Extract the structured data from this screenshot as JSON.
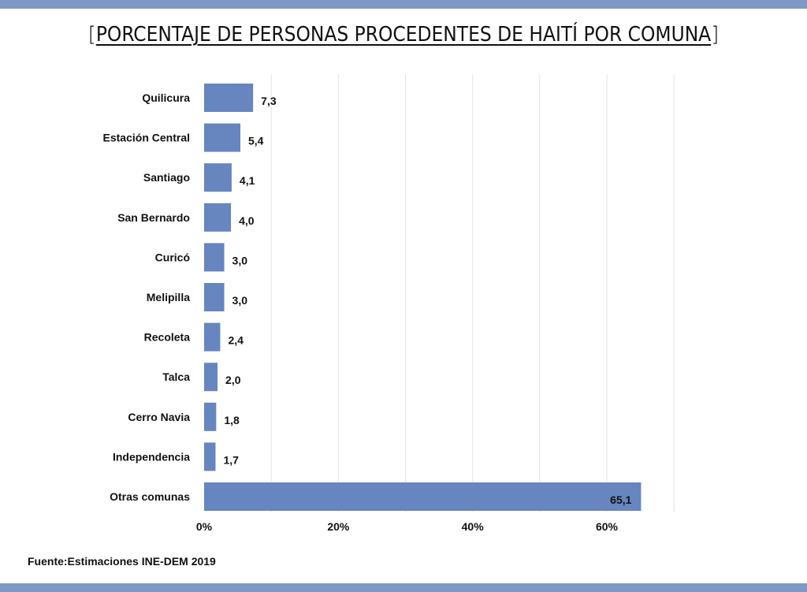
{
  "title": "PORCENTAJE DE PERSONAS PROCEDENTES DE HAITÍ POR COMUNA",
  "source": "Fuente:Estimaciones INE-DEM 2019",
  "colors": {
    "band": "#7f97c4",
    "bar": "#6785be",
    "grid": "#e3e3e3",
    "text": "#111111"
  },
  "chart_data": {
    "type": "bar",
    "orientation": "horizontal",
    "title": "PORCENTAJE DE PERSONAS PROCEDENTES DE HAITÍ POR COMUNA",
    "categories": [
      "Quilicura",
      "Estación Central",
      "Santiago",
      "San Bernardo",
      "Curicó",
      "Melipilla",
      "Recoleta",
      "Talca",
      "Cerro Navia",
      "Independencia",
      "Otras comunas"
    ],
    "values": [
      7.3,
      5.4,
      4.1,
      4.0,
      3.0,
      3.0,
      2.4,
      2.0,
      1.8,
      1.7,
      65.1
    ],
    "value_labels": [
      "7,3",
      "5,4",
      "4,1",
      "4,0",
      "3,0",
      "3,0",
      "2,4",
      "2,0",
      "1,8",
      "1,7",
      "65,1"
    ],
    "x_ticks": [
      0,
      20,
      40,
      60
    ],
    "x_tick_labels": [
      "0%",
      "20%",
      "40%",
      "60%"
    ],
    "xlim": [
      0,
      70
    ],
    "grid": true
  }
}
